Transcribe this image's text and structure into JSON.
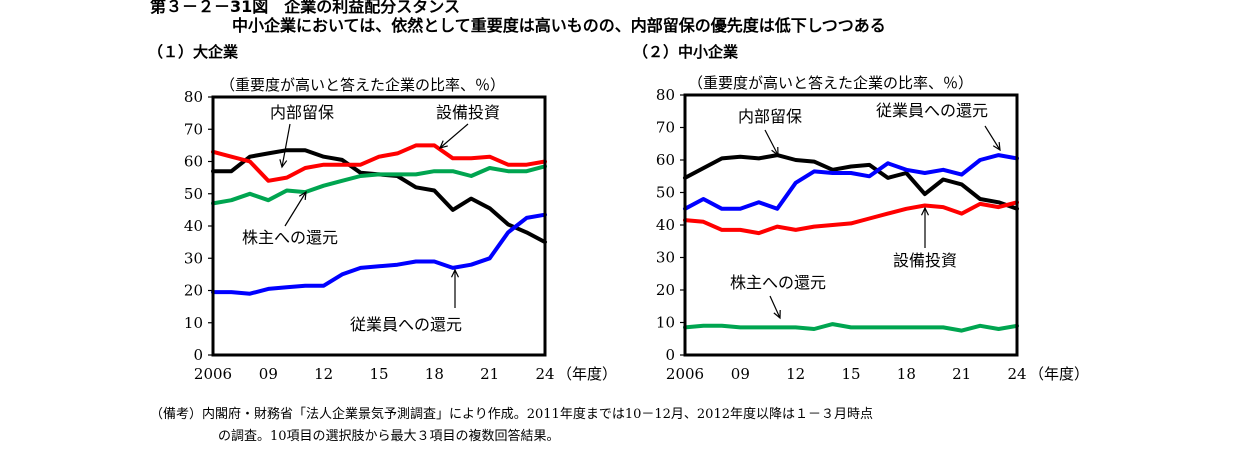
{
  "figure": {
    "title": "第３－２－31図　企業の利益配分スタンス",
    "subtitle": "中小企業においては、依然として重要度は高いものの、内部留保の優先度は低下しつつある",
    "note_line1": "（備考）内閣府・財務省「法人企業景気予測調査」により作成。2011年度までは10－12月、2012年度以降は１－３月時点",
    "note_line2": "の調査。10項目の選択肢から最大３項目の複数回答結果。"
  },
  "chart_data": [
    {
      "type": "line",
      "panel_label": "（１）大企業",
      "ylabel": "（重要度が高いと答えた企業の比率、％）",
      "xlabel": "（年度）",
      "ylim": [
        0,
        80
      ],
      "yticks": [
        0,
        10,
        20,
        30,
        40,
        50,
        60,
        70,
        80
      ],
      "xlim": [
        2006,
        2024
      ],
      "xtick_values": [
        2006,
        2009,
        2012,
        2015,
        2018,
        2021,
        2024
      ],
      "xtick_labels": [
        "2006",
        "09",
        "12",
        "15",
        "18",
        "21",
        "24"
      ],
      "x": [
        2006,
        2007,
        2008,
        2009,
        2010,
        2011,
        2012,
        2013,
        2014,
        2015,
        2016,
        2017,
        2018,
        2019,
        2020,
        2021,
        2022,
        2023,
        2024
      ],
      "series": [
        {
          "name": "内部留保",
          "color": "#000000",
          "values": [
            57,
            57,
            61.5,
            62.5,
            63.5,
            63.5,
            61.5,
            60.5,
            56.5,
            56,
            55.5,
            52,
            51,
            45,
            48.5,
            45.5,
            40.5,
            38,
            35
          ]
        },
        {
          "name": "設備投資",
          "color": "#ff0000",
          "values": [
            63,
            61.5,
            60,
            54,
            55,
            58,
            59,
            59,
            59,
            61.5,
            62.5,
            65,
            65,
            61,
            61,
            61.5,
            59,
            59,
            60
          ]
        },
        {
          "name": "株主への還元",
          "color": "#00a550",
          "values": [
            47,
            48,
            50,
            48,
            51,
            50.5,
            52.5,
            54,
            55.5,
            56,
            56,
            56,
            57,
            57,
            55.5,
            58,
            57,
            57,
            58.5
          ]
        },
        {
          "name": "従業員への還元",
          "color": "#0000ff",
          "values": [
            19.5,
            19.5,
            19,
            20.5,
            21,
            21.5,
            21.5,
            25,
            27,
            27.5,
            28,
            29,
            29,
            27,
            28,
            30,
            38,
            42.5,
            43.5
          ]
        }
      ],
      "annotations": [
        "内部留保",
        "設備投資",
        "株主への還元",
        "従業員への還元"
      ]
    },
    {
      "type": "line",
      "panel_label": "（２）中小企業",
      "ylabel": "（重要度が高いと答えた企業の比率、％）",
      "xlabel": "（年度）",
      "ylim": [
        0,
        80
      ],
      "yticks": [
        0,
        10,
        20,
        30,
        40,
        50,
        60,
        70,
        80
      ],
      "xlim": [
        2006,
        2024
      ],
      "xtick_values": [
        2006,
        2009,
        2012,
        2015,
        2018,
        2021,
        2024
      ],
      "xtick_labels": [
        "2006",
        "09",
        "12",
        "15",
        "18",
        "21",
        "24"
      ],
      "x": [
        2006,
        2007,
        2008,
        2009,
        2010,
        2011,
        2012,
        2013,
        2014,
        2015,
        2016,
        2017,
        2018,
        2019,
        2020,
        2021,
        2022,
        2023,
        2024
      ],
      "series": [
        {
          "name": "内部留保",
          "color": "#000000",
          "values": [
            54.5,
            57.5,
            60.5,
            61,
            60.5,
            61.5,
            60,
            59.5,
            57,
            58,
            58.5,
            54.5,
            56,
            49.5,
            54,
            52.5,
            48,
            47,
            45
          ]
        },
        {
          "name": "設備投資",
          "color": "#ff0000",
          "values": [
            41.5,
            41,
            38.5,
            38.5,
            37.5,
            39.5,
            38.5,
            39.5,
            40,
            40.5,
            42,
            43.5,
            45,
            46,
            45.5,
            43.5,
            46.5,
            45.5,
            47
          ]
        },
        {
          "name": "株主への還元",
          "color": "#00a550",
          "values": [
            8.5,
            9,
            9,
            8.5,
            8.5,
            8.5,
            8.5,
            8,
            9.5,
            8.5,
            8.5,
            8.5,
            8.5,
            8.5,
            8.5,
            7.5,
            9,
            8,
            9
          ]
        },
        {
          "name": "従業員への還元",
          "color": "#0000ff",
          "values": [
            45,
            48,
            45,
            45,
            47,
            45,
            53,
            56.5,
            56,
            56,
            55,
            59,
            57,
            56,
            57,
            55.5,
            60,
            61.5,
            60.5
          ]
        }
      ],
      "annotations": [
        "内部留保",
        "従業員への還元",
        "設備投資",
        "株主への還元"
      ]
    }
  ]
}
